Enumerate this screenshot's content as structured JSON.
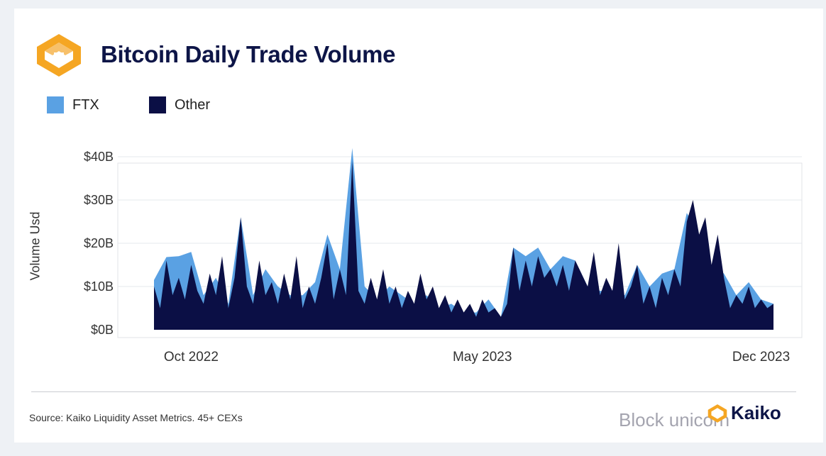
{
  "title": "Bitcoin Daily Trade Volume",
  "legend": [
    {
      "label": "FTX",
      "color": "#5aa1e3"
    },
    {
      "label": "Other",
      "color": "#0b0f45"
    }
  ],
  "source": "Source: Kaiko Liquidity Asset Metrics. 45+ CEXs",
  "brand": "Kaiko",
  "watermark": "Block unicorn",
  "chart_data": {
    "type": "area",
    "stacked": true,
    "ylabel": "Volume Usd",
    "y_ticks": [
      "$0B",
      "$10B",
      "$20B",
      "$30B",
      "$40B"
    ],
    "ylim": [
      0,
      40
    ],
    "x_ticks": [
      "Oct 2022",
      "May 2023",
      "Dec 2023"
    ],
    "xlim": [
      "2022-09-14",
      "2023-12-20"
    ],
    "grid": true,
    "series": [
      {
        "name": "FTX",
        "color": "#5aa1e3",
        "values": [
          [
            0,
            1.5
          ],
          [
            0.02,
            0.8
          ],
          [
            0.04,
            5
          ],
          [
            0.06,
            3
          ],
          [
            0.08,
            2
          ],
          [
            0.1,
            4
          ],
          [
            0.12,
            1
          ],
          [
            0.14,
            0
          ],
          [
            0.16,
            2
          ],
          [
            0.18,
            6
          ],
          [
            0.2,
            4
          ],
          [
            0.22,
            1
          ],
          [
            0.24,
            3
          ],
          [
            0.26,
            5
          ],
          [
            0.28,
            2
          ],
          [
            0.3,
            0
          ],
          [
            0.32,
            3
          ],
          [
            0.34,
            4
          ],
          [
            0.36,
            0
          ],
          [
            0.38,
            4
          ],
          [
            0.4,
            3
          ],
          [
            0.42,
            0
          ],
          [
            0.44,
            1
          ],
          [
            0.46,
            0
          ],
          [
            0.48,
            2
          ],
          [
            0.5,
            0
          ],
          [
            0.52,
            1
          ],
          [
            0.54,
            3
          ],
          [
            0.56,
            0
          ],
          [
            0.58,
            0
          ],
          [
            0.6,
            1
          ],
          [
            0.62,
            2
          ],
          [
            0.64,
            0
          ],
          [
            0.66,
            2
          ],
          [
            0.68,
            0
          ],
          [
            0.7,
            0
          ],
          [
            0.72,
            1
          ],
          [
            0.74,
            0
          ],
          [
            0.76,
            1
          ],
          [
            0.78,
            0
          ],
          [
            0.8,
            0
          ],
          [
            0.82,
            1
          ],
          [
            0.84,
            0
          ],
          [
            0.86,
            2
          ],
          [
            0.88,
            0
          ],
          [
            0.9,
            0
          ],
          [
            0.92,
            1
          ],
          [
            0.94,
            0
          ],
          [
            0.96,
            1
          ],
          [
            0.98,
            0
          ],
          [
            1,
            0
          ]
        ]
      },
      {
        "name": "Other",
        "color": "#0b0f45",
        "values": [
          [
            0,
            10
          ],
          [
            0.01,
            5
          ],
          [
            0.02,
            16
          ],
          [
            0.03,
            8
          ],
          [
            0.04,
            12
          ],
          [
            0.05,
            7
          ],
          [
            0.06,
            15
          ],
          [
            0.07,
            9
          ],
          [
            0.08,
            6
          ],
          [
            0.09,
            13
          ],
          [
            0.1,
            8
          ],
          [
            0.11,
            17
          ],
          [
            0.12,
            5
          ],
          [
            0.13,
            12
          ],
          [
            0.14,
            26
          ],
          [
            0.15,
            10
          ],
          [
            0.16,
            6
          ],
          [
            0.17,
            16
          ],
          [
            0.18,
            8
          ],
          [
            0.19,
            11
          ],
          [
            0.2,
            6
          ],
          [
            0.21,
            13
          ],
          [
            0.22,
            7
          ],
          [
            0.23,
            17
          ],
          [
            0.24,
            5
          ],
          [
            0.25,
            10
          ],
          [
            0.26,
            6
          ],
          [
            0.27,
            12
          ],
          [
            0.28,
            20
          ],
          [
            0.29,
            7
          ],
          [
            0.3,
            14
          ],
          [
            0.31,
            8
          ],
          [
            0.32,
            39
          ],
          [
            0.33,
            9
          ],
          [
            0.34,
            6
          ],
          [
            0.35,
            12
          ],
          [
            0.36,
            7
          ],
          [
            0.37,
            14
          ],
          [
            0.38,
            6
          ],
          [
            0.39,
            10
          ],
          [
            0.4,
            5
          ],
          [
            0.41,
            9
          ],
          [
            0.42,
            6
          ],
          [
            0.43,
            13
          ],
          [
            0.44,
            7
          ],
          [
            0.45,
            10
          ],
          [
            0.46,
            5
          ],
          [
            0.47,
            8
          ],
          [
            0.48,
            4
          ],
          [
            0.49,
            7
          ],
          [
            0.5,
            4
          ],
          [
            0.51,
            6
          ],
          [
            0.52,
            3
          ],
          [
            0.53,
            7
          ],
          [
            0.54,
            4
          ],
          [
            0.55,
            5
          ],
          [
            0.56,
            3
          ],
          [
            0.57,
            6
          ],
          [
            0.58,
            19
          ],
          [
            0.59,
            9
          ],
          [
            0.6,
            16
          ],
          [
            0.61,
            10
          ],
          [
            0.62,
            17
          ],
          [
            0.63,
            12
          ],
          [
            0.64,
            14
          ],
          [
            0.65,
            10
          ],
          [
            0.66,
            15
          ],
          [
            0.67,
            9
          ],
          [
            0.68,
            16
          ],
          [
            0.69,
            13
          ],
          [
            0.7,
            10
          ],
          [
            0.71,
            18
          ],
          [
            0.72,
            8
          ],
          [
            0.73,
            12
          ],
          [
            0.74,
            9
          ],
          [
            0.75,
            20
          ],
          [
            0.76,
            7
          ],
          [
            0.77,
            10
          ],
          [
            0.78,
            15
          ],
          [
            0.79,
            6
          ],
          [
            0.8,
            10
          ],
          [
            0.81,
            5
          ],
          [
            0.82,
            12
          ],
          [
            0.83,
            8
          ],
          [
            0.84,
            14
          ],
          [
            0.85,
            10
          ],
          [
            0.86,
            25
          ],
          [
            0.87,
            30
          ],
          [
            0.88,
            22
          ],
          [
            0.89,
            26
          ],
          [
            0.9,
            15
          ],
          [
            0.91,
            22
          ],
          [
            0.92,
            12
          ],
          [
            0.93,
            5
          ],
          [
            0.94,
            8
          ],
          [
            0.95,
            6
          ],
          [
            0.96,
            10
          ],
          [
            0.97,
            5
          ],
          [
            0.98,
            7
          ],
          [
            0.99,
            5
          ],
          [
            1,
            6
          ]
        ]
      }
    ]
  }
}
